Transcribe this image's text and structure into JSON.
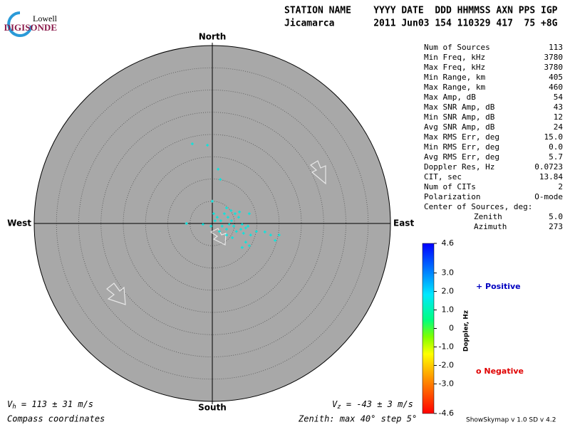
{
  "header": {
    "brand_top": "Lowell",
    "brand": "DIGISONDE",
    "line1": "STATION NAME    YYYY DATE  DDD HHMMSS AXN PPS IGP",
    "line2": "Jicamarca       2011 Jun03 154 110329 417  75 +8G"
  },
  "stats": [
    [
      "Num of Sources",
      "113"
    ],
    [
      "Min Freq, kHz",
      "3780"
    ],
    [
      "Max Freq, kHz",
      "3780"
    ],
    [
      "Min Range, km",
      "405"
    ],
    [
      "Max Range, km",
      "460"
    ],
    [
      "Max Amp, dB",
      "54"
    ],
    [
      "Max SNR Amp, dB",
      "43"
    ],
    [
      "Min SNR Amp, dB",
      "12"
    ],
    [
      "Avg SNR Amp, dB",
      "24"
    ],
    [
      "Max RMS Err, deg",
      "15.0"
    ],
    [
      "Min RMS Err, deg",
      "0.0"
    ],
    [
      "Avg RMS Err, deg",
      "5.7"
    ],
    [
      "Doppler Res, Hz",
      "0.0723"
    ],
    [
      "CIT, sec",
      "13.84"
    ],
    [
      "Num of CITs",
      "2"
    ],
    [
      "Polarization",
      "O-mode"
    ],
    [
      "Center of Sources, deg:",
      ""
    ]
  ],
  "center": [
    [
      "Zenith",
      "5.0"
    ],
    [
      "Azimuth",
      "273"
    ]
  ],
  "footer": {
    "vh_symbol": "V",
    "vh_sub": "h",
    "vh_text": " = 113 ± 31 m/s",
    "vz_symbol": "V",
    "vz_sub": "z",
    "vz_text": " = -43 ± 3 m/s",
    "coords": "Compass coordinates",
    "zenith": "Zenith: max 40°  step 5°",
    "version": "ShowSkymap v 1.0  SD v 4.2"
  },
  "chart_data": {
    "type": "scatter",
    "directions": {
      "north": "North",
      "south": "South",
      "east": "East",
      "west": "West"
    },
    "xlim": [
      -40,
      40
    ],
    "ylim": [
      -40,
      40
    ],
    "series": [
      {
        "color": "#00e8e0",
        "x": [
          -4.5,
          -1.1,
          1.3,
          1.8,
          0,
          -5.8,
          -2.1,
          0.3,
          1.1,
          1.9,
          2.7,
          3.5,
          4.3,
          5.1,
          5.9,
          6.7,
          7.5,
          8.3,
          2.2,
          3.2,
          3.8,
          4.8,
          5.4,
          6.4,
          7.0,
          8.0,
          8.6,
          9.9,
          11.8,
          13.1,
          15.0,
          14.1,
          7.5,
          6.7,
          8.3,
          4.5,
          3.2,
          1.6,
          0.6,
          -0.3,
          3.2,
          4.2,
          6.1
        ],
        "values": [
          17.9,
          17.6,
          12.2,
          9.9,
          5.0,
          0,
          -0.2,
          2.2,
          1.4,
          0.6,
          2.2,
          1.4,
          0.6,
          2.2,
          1.4,
          -0.2,
          -1.0,
          2.2,
          -0.6,
          -1.3,
          -0.2,
          -0.6,
          -1.8,
          -1.3,
          -2.2,
          -0.6,
          -2.6,
          -1.8,
          -1.9,
          -2.6,
          -2.6,
          -3.8,
          -4.2,
          -5.4,
          -5.0,
          -3.2,
          -2.6,
          -1.8,
          0.6,
          -0.6,
          3.5,
          2.9,
          2.6
        ]
      }
    ],
    "colorbar": {
      "label": "Doppler, Hz",
      "lim": [
        -4.6,
        4.6
      ],
      "ticks": [
        {
          "value": 4.6,
          "label": "4.6"
        },
        {
          "value": 3,
          "label": "3.0"
        },
        {
          "value": 2,
          "label": "2.0"
        },
        {
          "value": 1,
          "label": "1.0"
        },
        0,
        {
          "value": -1,
          "label": "-1.0"
        },
        {
          "value": -2,
          "label": "-2.0"
        },
        {
          "value": -3,
          "label": "-3.0"
        },
        {
          "value": -4.6,
          "label": "-4.6"
        }
      ]
    },
    "legend": [
      {
        "label": "+ Positive",
        "color": "#0000c0"
      },
      {
        "label": "o Negative",
        "color": "#e00000"
      }
    ]
  }
}
